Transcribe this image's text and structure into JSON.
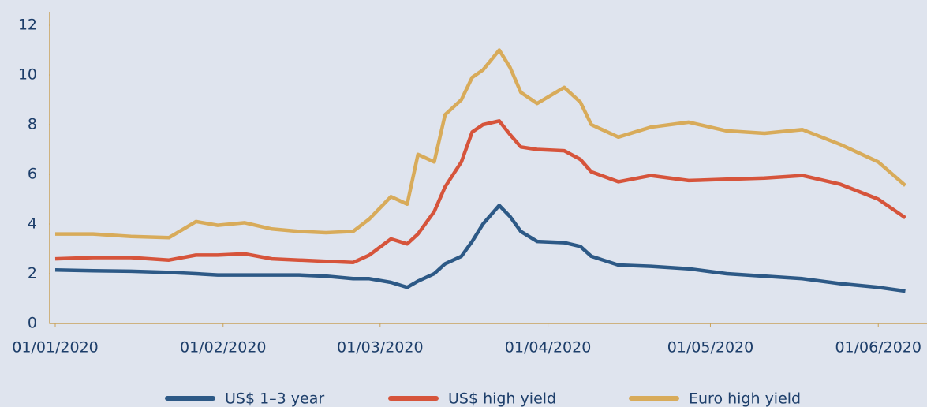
{
  "chart_data": {
    "type": "line",
    "x": [
      "2020-01-01",
      "2020-01-08",
      "2020-01-15",
      "2020-01-22",
      "2020-01-27",
      "2020-01-31",
      "2020-02-05",
      "2020-02-10",
      "2020-02-15",
      "2020-02-20",
      "2020-02-25",
      "2020-02-28",
      "2020-03-03",
      "2020-03-06",
      "2020-03-08",
      "2020-03-11",
      "2020-03-13",
      "2020-03-16",
      "2020-03-18",
      "2020-03-20",
      "2020-03-23",
      "2020-03-25",
      "2020-03-27",
      "2020-03-30",
      "2020-04-04",
      "2020-04-07",
      "2020-04-09",
      "2020-04-14",
      "2020-04-20",
      "2020-04-27",
      "2020-05-04",
      "2020-05-11",
      "2020-05-18",
      "2020-05-25",
      "2020-06-01",
      "2020-06-06"
    ],
    "series": [
      {
        "name": "US$ 1–3 year",
        "color": "#2d5986",
        "values": [
          2.15,
          2.12,
          2.1,
          2.05,
          2.0,
          1.95,
          1.95,
          1.95,
          1.95,
          1.9,
          1.8,
          1.8,
          1.65,
          1.45,
          1.7,
          2.0,
          2.4,
          2.7,
          3.3,
          4.0,
          4.75,
          4.3,
          3.7,
          3.3,
          3.25,
          3.1,
          2.7,
          2.35,
          2.3,
          2.2,
          2.0,
          1.9,
          1.8,
          1.6,
          1.45,
          1.3
        ]
      },
      {
        "name": "US$ high yield",
        "color": "#d6543b",
        "values": [
          2.6,
          2.65,
          2.65,
          2.55,
          2.75,
          2.75,
          2.8,
          2.6,
          2.55,
          2.5,
          2.45,
          2.75,
          3.4,
          3.2,
          3.6,
          4.5,
          5.5,
          6.5,
          7.7,
          8.0,
          8.15,
          7.6,
          7.1,
          7.0,
          6.95,
          6.6,
          6.1,
          5.7,
          5.95,
          5.75,
          5.8,
          5.85,
          5.95,
          5.6,
          5.0,
          4.25
        ]
      },
      {
        "name": "Euro high yield",
        "color": "#d8ab5a",
        "values": [
          3.6,
          3.6,
          3.5,
          3.45,
          4.1,
          3.95,
          4.05,
          3.8,
          3.7,
          3.65,
          3.7,
          4.2,
          5.1,
          4.8,
          6.8,
          6.5,
          8.4,
          9.0,
          9.9,
          10.2,
          11.0,
          10.3,
          9.3,
          8.85,
          9.5,
          8.9,
          8.0,
          7.5,
          7.9,
          8.1,
          7.75,
          7.65,
          7.8,
          7.2,
          6.5,
          5.55
        ]
      }
    ],
    "xlim": [
      "2020-01-01",
      "2020-06-10"
    ],
    "xticks": [
      {
        "value": "2020-01-01",
        "label": "01/01/2020"
      },
      {
        "value": "2020-02-01",
        "label": "01/02/2020"
      },
      {
        "value": "2020-03-01",
        "label": "01/03/2020"
      },
      {
        "value": "2020-04-01",
        "label": "01/04/2020"
      },
      {
        "value": "2020-05-01",
        "label": "01/05/2020"
      },
      {
        "value": "2020-06-01",
        "label": "01/06/2020"
      }
    ],
    "ylim": [
      0,
      12
    ],
    "yticks": [
      0,
      2,
      4,
      6,
      8,
      10,
      12
    ],
    "grid": false,
    "legend": "bottom"
  }
}
